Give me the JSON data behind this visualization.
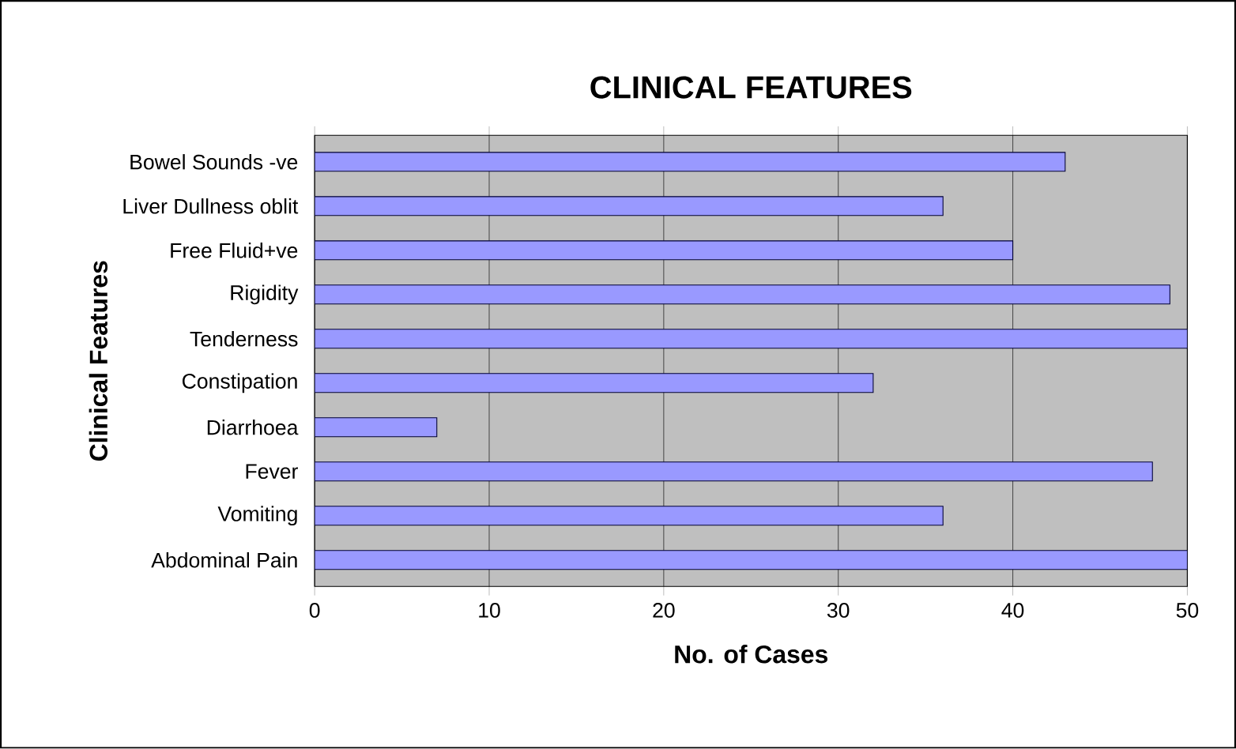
{
  "chart_data": {
    "type": "bar",
    "orientation": "horizontal",
    "title": "CLINICAL FEATURES",
    "xlabel": "No. of Cases",
    "ylabel": "Clinical Features",
    "categories": [
      "Bowel Sounds -ve",
      "Liver Dullness oblit",
      "Free Fluid+ve",
      "Rigidity",
      "Tenderness",
      "Constipation",
      "Diarrhoea",
      "Fever",
      "Vomiting",
      "Abdominal Pain"
    ],
    "values": [
      43,
      36,
      40,
      49,
      50,
      32,
      7,
      48,
      36,
      50
    ],
    "color": "#9999ff",
    "xlim": [
      0,
      50
    ],
    "xticks": [
      0,
      10,
      20,
      30,
      40,
      50
    ],
    "grid": "x"
  }
}
